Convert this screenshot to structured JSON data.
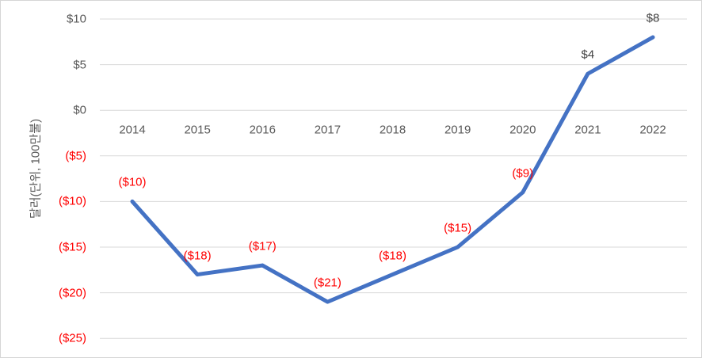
{
  "chart_data": {
    "type": "line",
    "title": "",
    "ylabel": "달러(단위, 100만불)",
    "xlabel": "",
    "categories": [
      "2014",
      "2015",
      "2016",
      "2017",
      "2018",
      "2019",
      "2020",
      "2021",
      "2022"
    ],
    "series": [
      {
        "name": "dollars",
        "values": [
          -10,
          -18,
          -17,
          -21,
          -18,
          -15,
          -9,
          4,
          8
        ],
        "point_labels": [
          "($10)",
          "($18)",
          "($17)",
          "($21)",
          "($18)",
          "($15)",
          "($9)",
          "$4",
          "$8"
        ]
      }
    ],
    "y_ticks": [
      10,
      5,
      0,
      -5,
      -10,
      -15,
      -20,
      -25
    ],
    "y_tick_labels": [
      "$10",
      "$5",
      "$0",
      "($5)",
      "($10)",
      "($15)",
      "($20)",
      "($25)"
    ],
    "ylim": [
      -25,
      10
    ],
    "grid": true,
    "legend": "none",
    "colors": {
      "line": "#4472C4",
      "gridline": "#D9D9D9",
      "tick_text": "#595959",
      "negative_text": "#FF0000",
      "positive_label_text": "#404040",
      "axis_title_text": "#595959"
    }
  }
}
